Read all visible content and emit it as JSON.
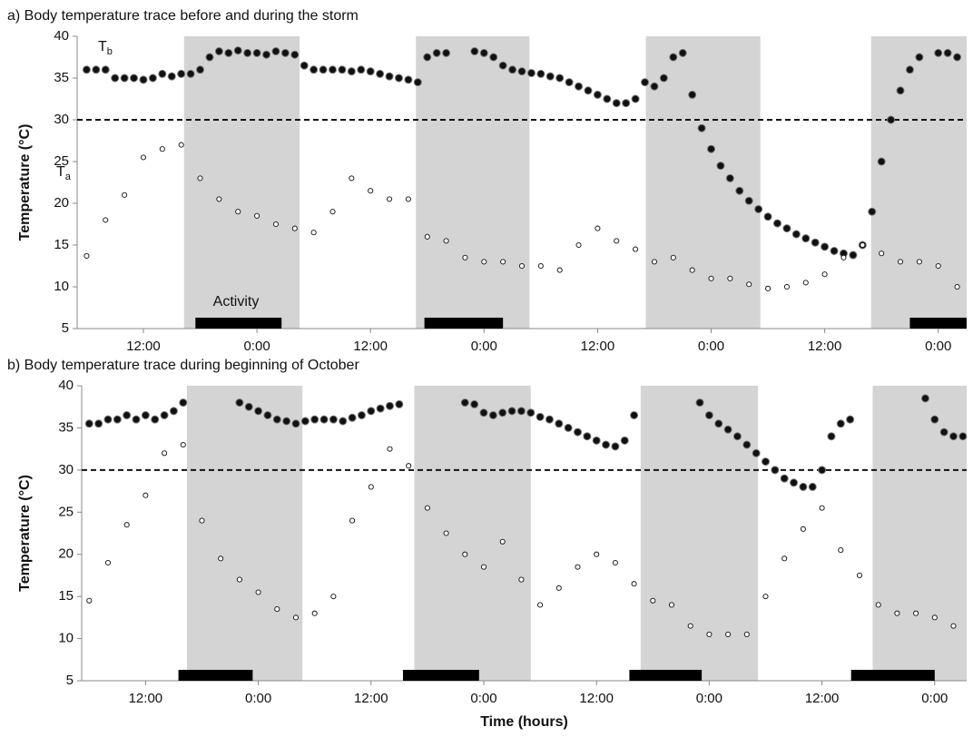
{
  "chart_data": [
    {
      "type": "scatter",
      "title": "a) Body temperature trace before and during the storm",
      "ylabel": "Temperature (°C)",
      "xlim": [
        5,
        99
      ],
      "ylim": [
        5,
        40
      ],
      "yticks": [
        5,
        10,
        15,
        20,
        25,
        30,
        35,
        40
      ],
      "xticks": [
        {
          "value": 12,
          "label": "12:00"
        },
        {
          "value": 24,
          "label": "0:00"
        },
        {
          "value": 36,
          "label": "12:00"
        },
        {
          "value": 48,
          "label": "0:00"
        },
        {
          "value": 60,
          "label": "12:00"
        },
        {
          "value": 72,
          "label": "0:00"
        },
        {
          "value": 84,
          "label": "12:00"
        },
        {
          "value": 96,
          "label": "0:00"
        }
      ],
      "threshold": 30,
      "night": [
        [
          16.3,
          28.5
        ],
        [
          40.8,
          52.8
        ],
        [
          65.1,
          77.2
        ],
        [
          88.9,
          99
        ]
      ],
      "activity": [
        [
          17.5,
          26.6
        ],
        [
          41.7,
          50
        ],
        [
          93,
          99
        ]
      ],
      "activity_label": "Activity",
      "series": [
        {
          "name": "T",
          "subscript": "b",
          "color": "#111111",
          "x": [
            6,
            7,
            8,
            9,
            10,
            11,
            12,
            13,
            14,
            15,
            16,
            17,
            18,
            19,
            20,
            21,
            22,
            23,
            24,
            25,
            26,
            27,
            28,
            29,
            30,
            31,
            32,
            33,
            34,
            35,
            36,
            37,
            38,
            39,
            40,
            41,
            42,
            43,
            44,
            45,
            46,
            47,
            48,
            49,
            50,
            51,
            52,
            53,
            54,
            55,
            56,
            57,
            58,
            59,
            60,
            61,
            62,
            63,
            64,
            65,
            66,
            67,
            68,
            69,
            70,
            71,
            72,
            73,
            74,
            75,
            76,
            77,
            78,
            79,
            80,
            81,
            82,
            83,
            84,
            85,
            86,
            87,
            88,
            89,
            90,
            91,
            92,
            93,
            94,
            95,
            96,
            97,
            98
          ],
          "values": [
            36,
            36,
            36,
            35,
            35,
            35,
            34.8,
            35,
            35.5,
            35.2,
            35.5,
            35.5,
            36,
            37.5,
            38.2,
            38,
            38.3,
            38,
            38,
            37.8,
            38.2,
            38,
            37.8,
            36.5,
            36,
            36,
            36,
            36,
            35.8,
            36,
            35.8,
            35.5,
            35.2,
            35,
            34.8,
            34.5,
            37.5,
            38,
            38,
            null,
            null,
            38.2,
            38,
            37.5,
            36.5,
            36,
            35.8,
            35.6,
            35.5,
            35.2,
            35,
            34.5,
            34,
            33.5,
            33,
            32.5,
            32,
            32,
            32.5,
            34.5,
            34,
            35,
            37.5,
            38,
            33,
            29,
            26.5,
            24.5,
            23,
            21.5,
            20.3,
            19.3,
            18.4,
            17.6,
            17,
            16.3,
            15.8,
            15.3,
            14.8,
            14.3,
            14,
            13.8,
            15,
            19,
            25,
            30,
            33.5,
            36,
            37.5,
            null,
            38,
            38,
            37.5
          ]
        },
        {
          "name": "T",
          "subscript": "a",
          "color": "#ffffff",
          "x": [
            6,
            8,
            10,
            12,
            14,
            16,
            18,
            20,
            22,
            24,
            26,
            28,
            30,
            32,
            34,
            36,
            38,
            40,
            42,
            44,
            46,
            48,
            50,
            52,
            54,
            56,
            58,
            60,
            62,
            64,
            66,
            68,
            70,
            72,
            74,
            76,
            78,
            80,
            82,
            84,
            86,
            88,
            90,
            92,
            94,
            96,
            98
          ],
          "values": [
            13.7,
            18,
            21,
            25.5,
            26.5,
            27,
            23,
            20.5,
            19,
            18.5,
            17.5,
            17,
            16.5,
            19,
            23,
            21.5,
            20.5,
            20.5,
            16,
            15.5,
            13.5,
            13,
            13,
            12.5,
            12.5,
            12,
            15,
            17,
            15.5,
            14.5,
            13,
            13.5,
            12,
            11,
            11,
            10.3,
            9.8,
            10,
            10.5,
            11.5,
            13.5,
            15,
            14,
            13,
            13,
            12.5,
            10
          ]
        }
      ]
    },
    {
      "type": "scatter",
      "title": "b) Body temperature trace during beginning of October",
      "ylabel": "Temperature (°C)",
      "xlabel": "Time (hours)",
      "xlim": [
        5.2,
        99.4
      ],
      "ylim": [
        5,
        40
      ],
      "yticks": [
        5,
        10,
        15,
        20,
        25,
        30,
        35,
        40
      ],
      "xticks": [
        {
          "value": 12,
          "label": "12:00"
        },
        {
          "value": 24,
          "label": "0:00"
        },
        {
          "value": 36,
          "label": "12:00"
        },
        {
          "value": 48,
          "label": "0:00"
        },
        {
          "value": 60,
          "label": "12:00"
        },
        {
          "value": 72,
          "label": "0:00"
        },
        {
          "value": 84,
          "label": "12:00"
        },
        {
          "value": 96,
          "label": "0:00"
        }
      ],
      "threshold": 30,
      "night": [
        [
          16.4,
          28.7
        ],
        [
          40.6,
          53
        ],
        [
          64.7,
          77.2
        ],
        [
          89.4,
          99.4
        ]
      ],
      "activity": [
        [
          15.5,
          23.4
        ],
        [
          39.4,
          47.5
        ],
        [
          63.5,
          71.2
        ],
        [
          87.1,
          96
        ]
      ],
      "series": [
        {
          "name": "T",
          "subscript": "b",
          "color": "#111111",
          "x": [
            6,
            7,
            8,
            9,
            10,
            11,
            12,
            13,
            14,
            15,
            16,
            17,
            18,
            19,
            20,
            21,
            22,
            23,
            24,
            25,
            26,
            27,
            28,
            29,
            30,
            31,
            32,
            33,
            34,
            35,
            36,
            37,
            38,
            39,
            40,
            41,
            42,
            43,
            44,
            45,
            46,
            47,
            48,
            49,
            50,
            51,
            52,
            53,
            54,
            55,
            56,
            57,
            58,
            59,
            60,
            61,
            62,
            63,
            64,
            65,
            66,
            67,
            68,
            69,
            70,
            71,
            72,
            73,
            74,
            75,
            76,
            77,
            78,
            79,
            80,
            81,
            82,
            83,
            84,
            85,
            86,
            87,
            88,
            89,
            90,
            91,
            92,
            93,
            94,
            95,
            96,
            97,
            98,
            99
          ],
          "values": [
            35.5,
            35.5,
            36,
            36,
            36.5,
            36,
            36.5,
            36,
            36.5,
            37,
            38,
            null,
            null,
            null,
            null,
            null,
            38,
            37.5,
            37,
            36.5,
            36,
            35.8,
            35.5,
            35.8,
            36,
            36,
            36,
            35.8,
            36.2,
            36.5,
            37,
            37.3,
            37.6,
            37.8,
            null,
            null,
            null,
            null,
            null,
            null,
            38,
            37.8,
            36.8,
            36.5,
            36.8,
            37,
            37,
            36.8,
            36.3,
            36,
            35.5,
            35,
            34.5,
            34,
            33.5,
            33,
            32.8,
            33.5,
            36.5,
            null,
            null,
            null,
            null,
            null,
            null,
            38,
            36.5,
            35.5,
            34.8,
            34,
            33,
            32,
            31,
            30,
            29,
            28.5,
            28,
            28,
            30,
            34,
            35.5,
            36,
            null,
            null,
            null,
            null,
            null,
            null,
            null,
            38.5,
            36,
            34.5,
            34,
            34
          ]
        },
        {
          "name": "T",
          "subscript": "a",
          "color": "#ffffff",
          "x": [
            6,
            8,
            10,
            12,
            14,
            16,
            18,
            20,
            22,
            24,
            26,
            28,
            30,
            32,
            34,
            36,
            38,
            40,
            42,
            44,
            46,
            48,
            50,
            52,
            54,
            56,
            58,
            60,
            62,
            64,
            66,
            68,
            70,
            72,
            74,
            76,
            78,
            80,
            82,
            84,
            86,
            88,
            90,
            92,
            94,
            96,
            98
          ],
          "values": [
            14.5,
            19,
            23.5,
            27,
            32,
            33,
            24,
            19.5,
            17,
            15.5,
            13.5,
            12.5,
            13,
            15,
            24,
            28,
            32.5,
            30.5,
            25.5,
            22.5,
            20,
            18.5,
            21.5,
            17,
            14,
            16,
            18.5,
            20,
            19,
            16.5,
            14.5,
            14,
            11.5,
            10.5,
            10.5,
            10.5,
            15,
            19.5,
            23,
            25.5,
            20.5,
            17.5,
            14,
            13,
            13,
            12.5,
            11.5
          ]
        }
      ]
    }
  ]
}
